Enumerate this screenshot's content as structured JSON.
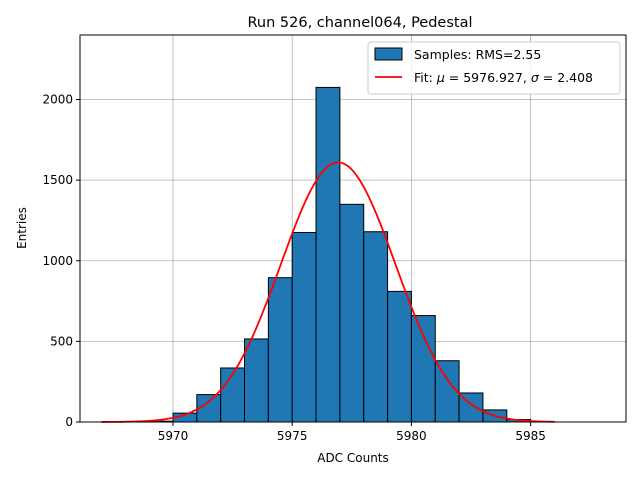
{
  "chart_data": {
    "type": "bar",
    "title": "Run 526, channel064, Pedestal",
    "xlabel": "ADC Counts",
    "ylabel": "Entries",
    "xlim": [
      5966.1,
      5989.0
    ],
    "ylim": [
      0,
      2400
    ],
    "grid": true,
    "legend_position": "top-right",
    "x_ticks": [
      5970,
      5975,
      5980,
      5985
    ],
    "y_ticks": [
      0,
      500,
      1000,
      1500,
      2000
    ],
    "histogram": {
      "name": "Samples: RMS=2.55",
      "color": "#1f77b4",
      "edge_color": "#000000",
      "bin_edges": [
        5969,
        5970,
        5971,
        5972,
        5973,
        5974,
        5975,
        5976,
        5977,
        5978,
        5979,
        5980,
        5981,
        5982,
        5983,
        5984,
        5985,
        5986
      ],
      "counts": [
        5,
        55,
        170,
        335,
        515,
        895,
        1175,
        2075,
        1350,
        1180,
        810,
        660,
        380,
        180,
        75,
        15,
        2
      ]
    },
    "fit": {
      "name": "Fit: μ = 5976.927, σ = 2.408",
      "legend_prefix": "Fit: ",
      "mu_symbol": "μ",
      "mu_value": "5976.927",
      "sigma_symbol": "σ",
      "sigma_value": "2.408",
      "color": "#ff0000",
      "mu": 5976.927,
      "sigma": 2.408,
      "amplitude": 1610,
      "x_range": [
        5967,
        5986
      ]
    }
  }
}
